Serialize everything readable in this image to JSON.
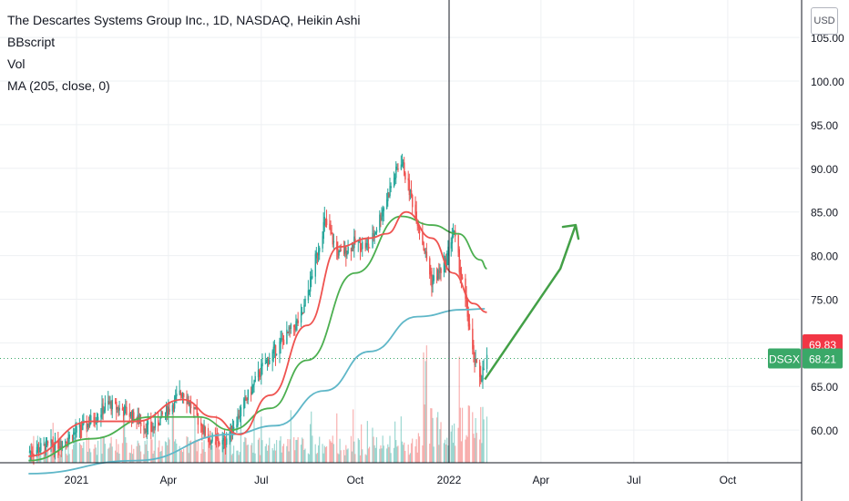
{
  "legend": {
    "title": "The Descartes Systems Group Inc., 1D, NASDAQ, Heikin Ashi",
    "indicator1": "BBscript",
    "indicator2": "Vol",
    "indicator3": "MA (205, close, 0)"
  },
  "currency_label": "USD",
  "colors": {
    "up": "#26a69a",
    "down": "#ef5350",
    "ma_red": "#ef5350",
    "ma_green": "#4caf50",
    "ma_blue": "#5fb7c8",
    "arrow": "#43a047",
    "price_tag": "#f23645",
    "current_tag": "#3aa868",
    "grid": "#eef0f3",
    "axis_text": "#131722"
  },
  "chart_data": {
    "type": "candlestick",
    "y_axis": {
      "min": 55,
      "max": 107,
      "ticks": [
        "105.00",
        "100.00",
        "95.00",
        "90.00",
        "85.00",
        "80.00",
        "75.00",
        "70.00",
        "65.00",
        "60.00"
      ]
    },
    "x_axis": {
      "ticks": [
        "2021",
        "Apr",
        "Jul",
        "Oct",
        "2022",
        "Apr",
        "Jul",
        "Oct"
      ]
    },
    "price_keypoints": [
      [
        "2020-11-15",
        57.5
      ],
      [
        "2020-12-15",
        58.5
      ],
      [
        "2021-01-10",
        60.5
      ],
      [
        "2021-02-01",
        63.0
      ],
      [
        "2021-02-20",
        62.0
      ],
      [
        "2021-03-15",
        60.0
      ],
      [
        "2021-04-15",
        64.5
      ],
      [
        "2021-05-10",
        59.0
      ],
      [
        "2021-05-25",
        58.5
      ],
      [
        "2021-06-10",
        62.0
      ],
      [
        "2021-07-01",
        67.0
      ],
      [
        "2021-07-20",
        70.0
      ],
      [
        "2021-08-10",
        73.0
      ],
      [
        "2021-09-01",
        84.0
      ],
      [
        "2021-09-15",
        80.0
      ],
      [
        "2021-10-01",
        81.5
      ],
      [
        "2021-10-15",
        81.0
      ],
      [
        "2021-11-05",
        88.0
      ],
      [
        "2021-11-15",
        91.0
      ],
      [
        "2021-12-01",
        84.0
      ],
      [
        "2021-12-15",
        77.0
      ],
      [
        "2021-12-28",
        79.0
      ],
      [
        "2022-01-05",
        83.0
      ],
      [
        "2022-01-18",
        74.0
      ],
      [
        "2022-01-25",
        68.0
      ],
      [
        "2022-02-01",
        66.0
      ],
      [
        "2022-02-07",
        68.2
      ]
    ],
    "series": [
      {
        "name": "MA (205, close, 0)",
        "points": [
          [
            "2020-11-15",
            55.0
          ],
          [
            "2021-03-01",
            56.5
          ],
          [
            "2021-06-01",
            59.5
          ],
          [
            "2021-07-15",
            60.5
          ],
          [
            "2021-09-01",
            64.5
          ],
          [
            "2021-10-15",
            69.0
          ],
          [
            "2021-12-01",
            73.0
          ],
          [
            "2022-01-15",
            73.8
          ],
          [
            "2022-02-05",
            73.9
          ]
        ]
      },
      {
        "name": "",
        "points": [
          [
            "2020-11-15",
            56.5
          ],
          [
            "2021-01-15",
            59.0
          ],
          [
            "2021-03-15",
            61.5
          ],
          [
            "2021-05-01",
            61.5
          ],
          [
            "2021-06-01",
            60.0
          ],
          [
            "2021-07-10",
            62.5
          ],
          [
            "2021-08-15",
            68.0
          ],
          [
            "2021-10-01",
            78.0
          ],
          [
            "2021-11-15",
            84.5
          ],
          [
            "2021-12-15",
            83.5
          ],
          [
            "2022-01-10",
            82.5
          ],
          [
            "2022-02-01",
            79.5
          ],
          [
            "2022-02-07",
            78.5
          ]
        ]
      },
      {
        "name": "",
        "points": [
          [
            "2020-11-15",
            57.0
          ],
          [
            "2021-01-15",
            61.0
          ],
          [
            "2021-03-01",
            61.0
          ],
          [
            "2021-04-15",
            63.5
          ],
          [
            "2021-05-15",
            61.5
          ],
          [
            "2021-06-10",
            59.5
          ],
          [
            "2021-07-10",
            64.0
          ],
          [
            "2021-08-15",
            72.0
          ],
          [
            "2021-09-15",
            81.0
          ],
          [
            "2021-10-15",
            82.0
          ],
          [
            "2021-11-01",
            82.5
          ],
          [
            "2021-11-20",
            85.0
          ],
          [
            "2021-12-15",
            82.0
          ],
          [
            "2022-01-05",
            78.0
          ],
          [
            "2022-01-25",
            74.5
          ],
          [
            "2022-02-07",
            73.5
          ]
        ]
      }
    ],
    "current_price": {
      "label": "DSGX",
      "value": "68.21",
      "y": 68.21
    },
    "price_tag": {
      "value": "69.83",
      "y": 69.83
    },
    "arrow": {
      "from": [
        "2022-02-05",
        65.8
      ],
      "via": [
        "2022-04-20",
        78.5
      ],
      "to": [
        "2022-05-05",
        83.5
      ]
    },
    "vertical_marker": "2022-01-01"
  }
}
